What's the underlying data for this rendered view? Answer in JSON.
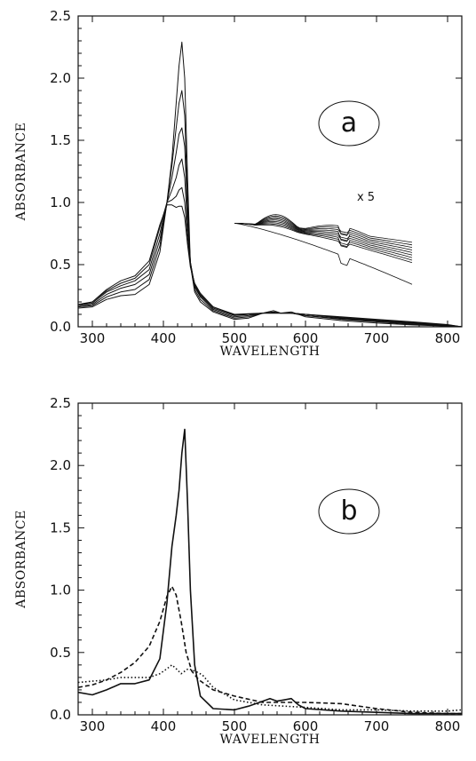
{
  "chart_data": [
    {
      "type": "line",
      "panel_label": "a",
      "xlabel": "WAVELENGTH",
      "ylabel": "ABSORBANCE",
      "xlim": [
        280,
        820
      ],
      "ylim": [
        0,
        2.5
      ],
      "xticks": [
        300,
        400,
        500,
        600,
        700,
        800
      ],
      "yticks": [
        0.0,
        0.5,
        1.0,
        1.5,
        2.0,
        2.5
      ],
      "ytick_labels": [
        "0.0",
        "0.5",
        "1.0",
        "1.5",
        "2.0",
        "2.5"
      ],
      "grid": false,
      "legend": "none",
      "inset": {
        "annotation": "x 5",
        "x_range": [
          500,
          750
        ],
        "description_level": [
          0.62,
          0.96
        ]
      },
      "series": [
        {
          "x": [
            280,
            300,
            320,
            340,
            360,
            380,
            395,
            405,
            412,
            418,
            422,
            426,
            430,
            434,
            438,
            444,
            452,
            470,
            500,
            520,
            540,
            555,
            565,
            580,
            600,
            650,
            700,
            750,
            800,
            820
          ],
          "y": [
            0.15,
            0.16,
            0.22,
            0.25,
            0.26,
            0.34,
            0.6,
            1.0,
            1.35,
            1.8,
            2.1,
            2.29,
            2.0,
            1.2,
            0.5,
            0.28,
            0.2,
            0.12,
            0.06,
            0.07,
            0.11,
            0.13,
            0.11,
            0.12,
            0.08,
            0.05,
            0.03,
            0.015,
            0.005,
            0.0
          ]
        },
        {
          "x": [
            280,
            300,
            320,
            340,
            360,
            380,
            395,
            405,
            412,
            418,
            422,
            426,
            430,
            434,
            438,
            444,
            452,
            470,
            500,
            520,
            540,
            555,
            565,
            580,
            600,
            650,
            700,
            750,
            800,
            820
          ],
          "y": [
            0.16,
            0.17,
            0.24,
            0.28,
            0.3,
            0.38,
            0.65,
            1.0,
            1.3,
            1.6,
            1.8,
            1.9,
            1.7,
            1.0,
            0.5,
            0.3,
            0.22,
            0.13,
            0.07,
            0.08,
            0.11,
            0.12,
            0.11,
            0.11,
            0.09,
            0.06,
            0.04,
            0.02,
            0.008,
            0.0
          ]
        },
        {
          "x": [
            280,
            300,
            320,
            340,
            360,
            380,
            395,
            405,
            412,
            418,
            422,
            426,
            430,
            434,
            438,
            444,
            452,
            470,
            500,
            520,
            540,
            555,
            565,
            580,
            600,
            650,
            700,
            750,
            800,
            820
          ],
          "y": [
            0.16,
            0.18,
            0.26,
            0.31,
            0.34,
            0.42,
            0.7,
            1.0,
            1.2,
            1.4,
            1.55,
            1.6,
            1.45,
            0.9,
            0.52,
            0.32,
            0.24,
            0.14,
            0.08,
            0.09,
            0.11,
            0.115,
            0.11,
            0.11,
            0.09,
            0.065,
            0.045,
            0.025,
            0.01,
            0.0
          ]
        },
        {
          "x": [
            280,
            300,
            320,
            340,
            360,
            380,
            395,
            405,
            412,
            418,
            422,
            426,
            430,
            434,
            438,
            444,
            452,
            470,
            500,
            520,
            540,
            555,
            565,
            580,
            600,
            650,
            700,
            750,
            800,
            820
          ],
          "y": [
            0.17,
            0.19,
            0.28,
            0.33,
            0.37,
            0.46,
            0.75,
            1.0,
            1.1,
            1.2,
            1.3,
            1.35,
            1.2,
            0.8,
            0.52,
            0.33,
            0.25,
            0.15,
            0.09,
            0.1,
            0.11,
            0.11,
            0.11,
            0.11,
            0.1,
            0.07,
            0.05,
            0.03,
            0.012,
            0.0
          ]
        },
        {
          "x": [
            280,
            300,
            320,
            340,
            360,
            380,
            395,
            405,
            412,
            418,
            422,
            426,
            430,
            434,
            438,
            444,
            452,
            470,
            500,
            520,
            540,
            555,
            565,
            580,
            600,
            650,
            700,
            750,
            800,
            820
          ],
          "y": [
            0.17,
            0.2,
            0.29,
            0.35,
            0.39,
            0.5,
            0.8,
            1.0,
            1.02,
            1.05,
            1.1,
            1.12,
            1.0,
            0.72,
            0.5,
            0.34,
            0.26,
            0.16,
            0.095,
            0.1,
            0.11,
            0.11,
            0.11,
            0.11,
            0.1,
            0.075,
            0.055,
            0.035,
            0.015,
            0.0
          ]
        },
        {
          "x": [
            280,
            300,
            320,
            340,
            360,
            380,
            395,
            405,
            412,
            418,
            422,
            426,
            430,
            434,
            438,
            444,
            452,
            470,
            500,
            520,
            540,
            555,
            565,
            580,
            600,
            650,
            700,
            750,
            800,
            820
          ],
          "y": [
            0.18,
            0.2,
            0.3,
            0.37,
            0.41,
            0.53,
            0.82,
            0.98,
            0.98,
            0.96,
            0.97,
            0.97,
            0.88,
            0.66,
            0.48,
            0.35,
            0.27,
            0.16,
            0.1,
            0.105,
            0.11,
            0.11,
            0.11,
            0.11,
            0.1,
            0.08,
            0.06,
            0.04,
            0.018,
            0.0
          ]
        }
      ]
    },
    {
      "type": "line",
      "panel_label": "b",
      "xlabel": "WAVELENGTH",
      "ylabel": "ABSORBANCE",
      "xlim": [
        280,
        820
      ],
      "ylim": [
        0,
        2.5
      ],
      "xticks": [
        300,
        400,
        500,
        600,
        700,
        800
      ],
      "yticks": [
        0.0,
        0.5,
        1.0,
        1.5,
        2.0,
        2.5
      ],
      "ytick_labels": [
        "0.0",
        "0.5",
        "1.0",
        "1.5",
        "2.0",
        "2.5"
      ],
      "grid": false,
      "legend": "none",
      "series": [
        {
          "style": "solid",
          "x": [
            280,
            300,
            320,
            340,
            360,
            380,
            395,
            405,
            412,
            418,
            422,
            426,
            430,
            434,
            438,
            444,
            452,
            470,
            500,
            520,
            540,
            550,
            560,
            570,
            580,
            590,
            600,
            650,
            700,
            750,
            800,
            820
          ],
          "y": [
            0.18,
            0.16,
            0.2,
            0.25,
            0.25,
            0.28,
            0.45,
            0.9,
            1.35,
            1.6,
            1.8,
            2.1,
            2.29,
            1.7,
            1.0,
            0.4,
            0.15,
            0.05,
            0.04,
            0.07,
            0.11,
            0.13,
            0.11,
            0.12,
            0.13,
            0.08,
            0.05,
            0.03,
            0.02,
            0.01,
            0.01,
            0.01
          ]
        },
        {
          "style": "dashed",
          "x": [
            280,
            300,
            320,
            340,
            360,
            380,
            395,
            405,
            412,
            418,
            425,
            432,
            440,
            450,
            470,
            500,
            540,
            600,
            650,
            700,
            750,
            800,
            820
          ],
          "y": [
            0.22,
            0.24,
            0.28,
            0.34,
            0.42,
            0.55,
            0.75,
            0.95,
            1.03,
            0.96,
            0.75,
            0.5,
            0.35,
            0.28,
            0.2,
            0.15,
            0.1,
            0.1,
            0.09,
            0.05,
            0.02,
            0.01,
            0.01
          ]
        },
        {
          "style": "dotted",
          "x": [
            280,
            300,
            320,
            340,
            360,
            380,
            395,
            405,
            412,
            418,
            425,
            435,
            445,
            455,
            470,
            500,
            540,
            600,
            650,
            700,
            750,
            800,
            820
          ],
          "y": [
            0.26,
            0.27,
            0.28,
            0.3,
            0.3,
            0.3,
            0.33,
            0.37,
            0.4,
            0.37,
            0.33,
            0.37,
            0.35,
            0.32,
            0.22,
            0.12,
            0.08,
            0.06,
            0.04,
            0.04,
            0.03,
            0.03,
            0.04
          ]
        }
      ]
    }
  ]
}
